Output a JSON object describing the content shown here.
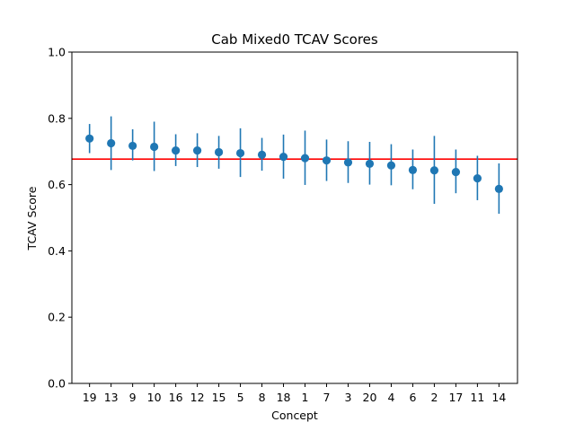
{
  "chart_data": {
    "type": "scatter",
    "title": "Cab Mixed0 TCAV Scores",
    "xlabel": "Concept",
    "ylabel": "TCAV Score",
    "ylim": [
      0.0,
      1.0
    ],
    "yticks": [
      "0.0",
      "0.2",
      "0.4",
      "0.6",
      "0.8",
      "1.0"
    ],
    "grid": false,
    "categories": [
      "19",
      "13",
      "9",
      "10",
      "16",
      "12",
      "15",
      "5",
      "8",
      "18",
      "1",
      "7",
      "3",
      "20",
      "4",
      "6",
      "2",
      "17",
      "11",
      "14"
    ],
    "values": [
      0.739,
      0.725,
      0.717,
      0.714,
      0.703,
      0.703,
      0.698,
      0.695,
      0.69,
      0.684,
      0.68,
      0.673,
      0.667,
      0.663,
      0.658,
      0.644,
      0.643,
      0.638,
      0.619,
      0.587
    ],
    "error_low": [
      0.695,
      0.644,
      0.673,
      0.641,
      0.656,
      0.653,
      0.648,
      0.623,
      0.642,
      0.618,
      0.599,
      0.611,
      0.605,
      0.6,
      0.598,
      0.586,
      0.542,
      0.574,
      0.553,
      0.512
    ],
    "error_high": [
      0.783,
      0.806,
      0.767,
      0.79,
      0.752,
      0.755,
      0.747,
      0.77,
      0.741,
      0.751,
      0.763,
      0.736,
      0.731,
      0.729,
      0.722,
      0.706,
      0.747,
      0.706,
      0.687,
      0.664
    ],
    "reference_line": {
      "y": 0.677,
      "color": "#ff0000"
    },
    "marker_color": "#1f77b4"
  }
}
